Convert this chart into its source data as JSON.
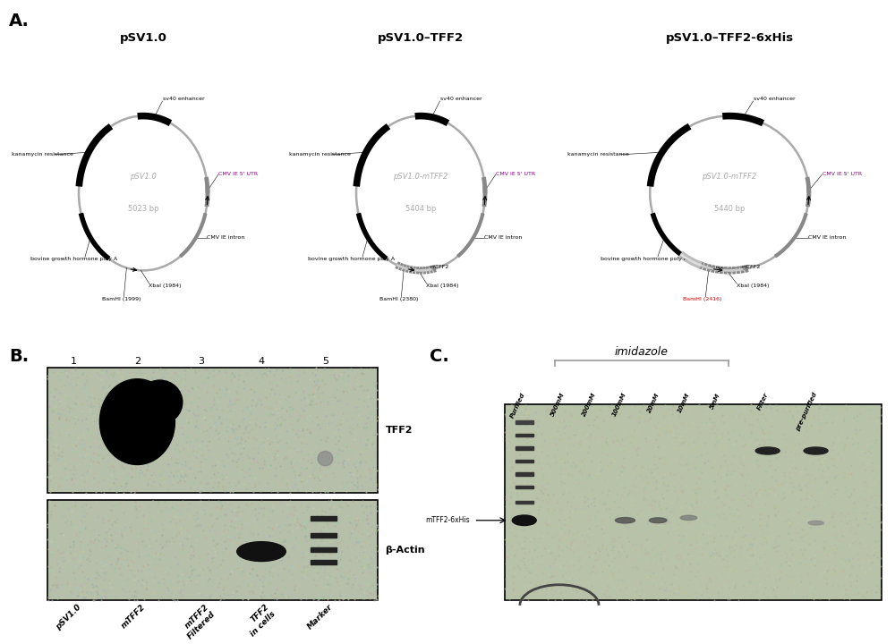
{
  "panel_A_label": "A.",
  "panel_B_label": "B.",
  "panel_C_label": "C.",
  "plasmid1": {
    "title": "pSV1.0",
    "center_label": "pSV1.0",
    "bp": "5023 bp"
  },
  "plasmid2": {
    "title": "pSV1.0–TFF2",
    "center_label": "pSV1.0-mTFF2",
    "bp": "5404 bp"
  },
  "plasmid3": {
    "title": "pSV1.0–TFF2-6xHis",
    "center_label": "pSV1.0-mTFF2",
    "bp": "5440 bp"
  },
  "western_lanes": [
    "1",
    "2",
    "3",
    "4",
    "5"
  ],
  "western_xlabels": [
    "pSV1.0",
    "mTFF2",
    "mTFF2\nFiltered",
    "TFF2\nin cells",
    "Marker"
  ],
  "western_label1": "TFF2",
  "western_label2": "β-Actin",
  "gel_top_label": "imidazole",
  "gel_columns": [
    "Purified",
    "500mM",
    "200mM",
    "100mM",
    "20mM",
    "10mM",
    "5mM",
    "Filter",
    "pre-purified"
  ],
  "gel_band_label": "mTFF2-6xHis",
  "western_bg": "#b8c4b0",
  "gel_bg": "#b8c4a8"
}
